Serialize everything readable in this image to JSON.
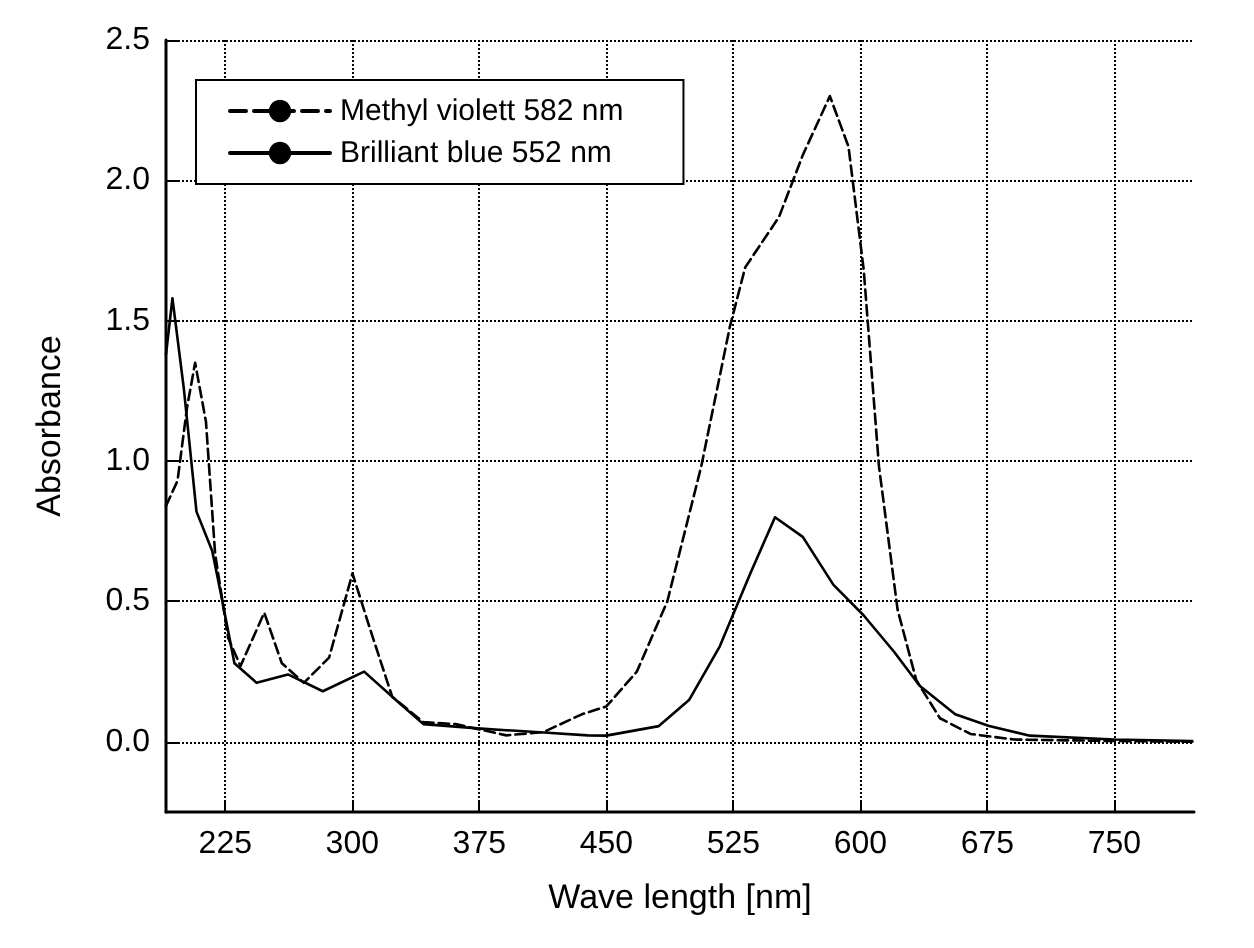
{
  "chart_data": {
    "type": "line",
    "xlabel": "Wave length [nm]",
    "ylabel": "Absorbance",
    "xlim": [
      190,
      797
    ],
    "xticks": [
      225,
      300,
      375,
      450,
      525,
      600,
      675,
      750
    ],
    "ylim": [
      -0.25,
      2.5
    ],
    "yticks": [
      {
        "value": 0,
        "label": "0.0"
      },
      0.5,
      {
        "value": 1,
        "label": "1.0"
      },
      1.5,
      {
        "value": 2,
        "label": "2.0"
      },
      2.5
    ],
    "grid": true,
    "legend": "top left",
    "marker": "none",
    "series": [
      {
        "name": "Methyl violett 582 nm",
        "color": "#000000",
        "line_style": "dashed",
        "x": [
          190,
          196.8,
          202.4,
          207.2,
          213.6,
          219,
          226.7,
          234,
          248,
          258.4,
          271.4,
          286.3,
          300.1,
          310.6,
          323.6,
          342,
          361,
          391,
          413,
          435.5,
          450,
          468,
          486,
          506,
          523,
          532,
          552,
          566,
          582,
          593,
          602,
          611,
          622,
          633,
          647,
          665,
          691,
          750,
          796
        ],
        "values": [
          0.84,
          0.93,
          1.19,
          1.35,
          1.14,
          0.67,
          0.37,
          0.27,
          0.46,
          0.28,
          0.21,
          0.3,
          0.6,
          0.4,
          0.16,
          0.07,
          0.063,
          0.023,
          0.035,
          0.098,
          0.126,
          0.25,
          0.5,
          0.98,
          1.48,
          1.69,
          1.87,
          2.09,
          2.3,
          2.12,
          1.68,
          0.98,
          0.47,
          0.22,
          0.084,
          0.028,
          0.008,
          0.003,
          0
        ]
      },
      {
        "name": "Brilliant blue 552 nm",
        "color": "#000000",
        "line_style": "solid",
        "x": [
          190,
          193.8,
          200.5,
          208,
          217.3,
          223,
          230.4,
          243.5,
          262,
          282.6,
          307,
          327.4,
          342,
          376,
          413,
          439,
          450,
          481,
          499,
          517,
          535,
          549.6,
          566,
          584,
          602,
          620,
          635,
          656,
          676,
          700,
          750,
          796
        ],
        "values": [
          1.38,
          1.58,
          1.26,
          0.82,
          0.68,
          0.51,
          0.28,
          0.21,
          0.24,
          0.18,
          0.25,
          0.14,
          0.063,
          0.047,
          0.033,
          0.023,
          0.022,
          0.056,
          0.15,
          0.34,
          0.6,
          0.8,
          0.73,
          0.56,
          0.45,
          0.32,
          0.2,
          0.098,
          0.056,
          0.022,
          0.008,
          0.003
        ]
      }
    ]
  }
}
